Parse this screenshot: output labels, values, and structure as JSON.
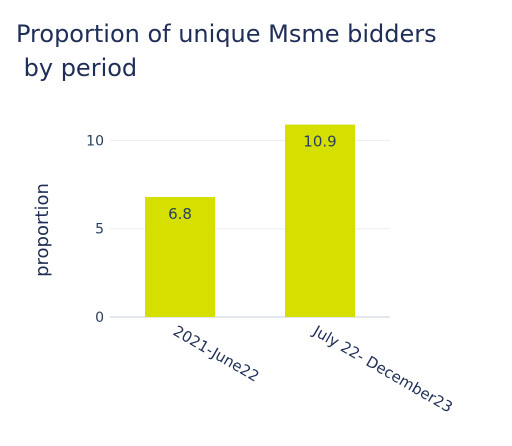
{
  "chart_data": {
    "type": "bar",
    "title_lines": [
      "Proportion of unique Msme bidders",
      " by period"
    ],
    "xlabel": "",
    "ylabel": "proportion",
    "categories": [
      "2021-June22",
      "July 22- December23"
    ],
    "values": [
      6.8,
      10.9
    ],
    "data_labels": [
      "6.8",
      "10.9"
    ],
    "yticks": [
      0,
      5,
      10
    ],
    "ylim": [
      0,
      11.5
    ],
    "grid": true,
    "bar_color": "#d6e000"
  }
}
